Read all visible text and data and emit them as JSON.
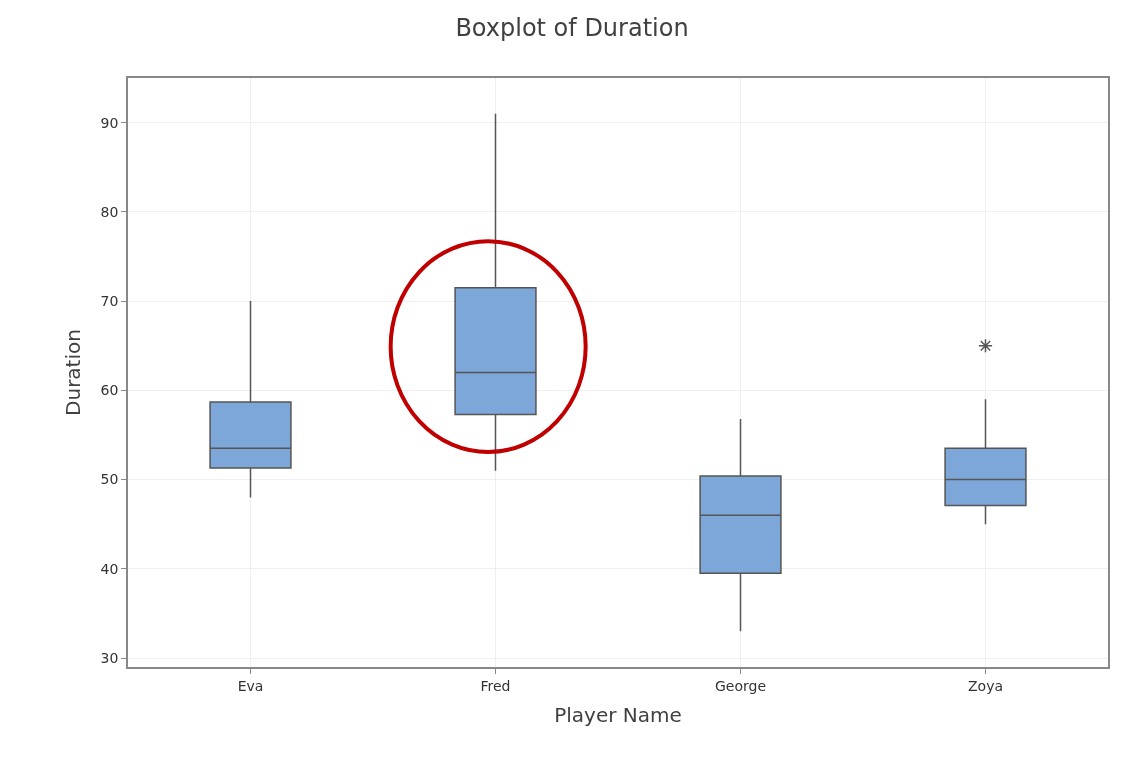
{
  "chart_data": {
    "type": "box",
    "title": "Boxplot of Duration",
    "xlabel": "Player Name",
    "ylabel": "Duration",
    "categories": [
      "Eva",
      "Fred",
      "George",
      "Zoya"
    ],
    "boxes": [
      {
        "low": 48,
        "q1": 51.3,
        "median": 53.5,
        "q3": 58.7,
        "high": 70
      },
      {
        "low": 51,
        "q1": 57.3,
        "median": 62,
        "q3": 71.5,
        "high": 91
      },
      {
        "low": 33,
        "q1": 39.5,
        "median": 46,
        "q3": 50.4,
        "high": 56.8
      },
      {
        "low": 45,
        "q1": 47.1,
        "median": 50,
        "q3": 53.5,
        "high": 59,
        "outliers": [
          65
        ]
      }
    ],
    "color": "#7da7d9",
    "ylim": [
      29,
      95
    ],
    "yticks": [
      30,
      40,
      50,
      60,
      70,
      80,
      90
    ],
    "grid": true
  }
}
